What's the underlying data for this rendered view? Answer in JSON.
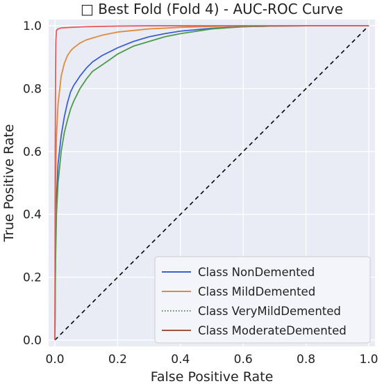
{
  "chart_data": {
    "type": "line",
    "title": "□ Best Fold (Fold 4) - AUC-ROC Curve",
    "xlabel": "False Positive Rate",
    "ylabel": "True Positive Rate",
    "xlim": [
      -0.02,
      1.02
    ],
    "ylim": [
      -0.02,
      1.02
    ],
    "xticks": [
      0.0,
      0.2,
      0.4,
      0.6,
      0.8,
      1.0
    ],
    "yticks": [
      0.0,
      0.2,
      0.4,
      0.6,
      0.8,
      1.0
    ],
    "xtick_labels": [
      "0.0",
      "0.2",
      "0.4",
      "0.6",
      "0.8",
      "1.0"
    ],
    "ytick_labels": [
      "0.0",
      "0.2",
      "0.4",
      "0.6",
      "0.8",
      "1.0"
    ],
    "grid": true,
    "legend_position": "lower-right",
    "background_color": "#e9ecf4",
    "series": [
      {
        "name": "Class NonDemented",
        "color": "#3b5fcf",
        "dash": "solid",
        "points": [
          [
            0,
            0
          ],
          [
            0.002,
            0.3
          ],
          [
            0.005,
            0.45
          ],
          [
            0.01,
            0.56
          ],
          [
            0.02,
            0.65
          ],
          [
            0.03,
            0.71
          ],
          [
            0.04,
            0.755
          ],
          [
            0.05,
            0.79
          ],
          [
            0.06,
            0.81
          ],
          [
            0.08,
            0.84
          ],
          [
            0.1,
            0.865
          ],
          [
            0.12,
            0.885
          ],
          [
            0.15,
            0.905
          ],
          [
            0.2,
            0.93
          ],
          [
            0.25,
            0.95
          ],
          [
            0.3,
            0.965
          ],
          [
            0.35,
            0.975
          ],
          [
            0.4,
            0.983
          ],
          [
            0.5,
            0.992
          ],
          [
            0.6,
            0.997
          ],
          [
            0.7,
            0.999
          ],
          [
            0.8,
            1.0
          ],
          [
            1.0,
            1.0
          ]
        ]
      },
      {
        "name": "Class MildDemented",
        "color": "#e08a3c",
        "dash": "solid",
        "points": [
          [
            0,
            0
          ],
          [
            0.002,
            0.5
          ],
          [
            0.005,
            0.65
          ],
          [
            0.01,
            0.75
          ],
          [
            0.02,
            0.84
          ],
          [
            0.03,
            0.88
          ],
          [
            0.04,
            0.905
          ],
          [
            0.05,
            0.92
          ],
          [
            0.06,
            0.93
          ],
          [
            0.08,
            0.945
          ],
          [
            0.1,
            0.955
          ],
          [
            0.15,
            0.97
          ],
          [
            0.2,
            0.98
          ],
          [
            0.3,
            0.99
          ],
          [
            0.4,
            0.995
          ],
          [
            0.5,
            0.998
          ],
          [
            0.6,
            1.0
          ],
          [
            1.0,
            1.0
          ]
        ]
      },
      {
        "name": "Class VeryMildDemented",
        "color": "#4a9a4a",
        "dash": "solid",
        "legend_dash": "dotted",
        "points": [
          [
            0,
            0
          ],
          [
            0.002,
            0.25
          ],
          [
            0.005,
            0.4
          ],
          [
            0.01,
            0.5
          ],
          [
            0.02,
            0.6
          ],
          [
            0.03,
            0.66
          ],
          [
            0.04,
            0.7
          ],
          [
            0.05,
            0.735
          ],
          [
            0.06,
            0.76
          ],
          [
            0.08,
            0.8
          ],
          [
            0.1,
            0.83
          ],
          [
            0.12,
            0.855
          ],
          [
            0.15,
            0.875
          ],
          [
            0.2,
            0.91
          ],
          [
            0.25,
            0.935
          ],
          [
            0.3,
            0.95
          ],
          [
            0.35,
            0.965
          ],
          [
            0.4,
            0.975
          ],
          [
            0.5,
            0.99
          ],
          [
            0.6,
            0.997
          ],
          [
            0.7,
            0.999
          ],
          [
            0.8,
            1.0
          ],
          [
            1.0,
            1.0
          ]
        ]
      },
      {
        "name": "Class ModerateDemented",
        "color": "#e55b5b",
        "dash": "solid",
        "legend_color": "#a0523a",
        "points": [
          [
            0,
            0
          ],
          [
            0.001,
            0.6
          ],
          [
            0.002,
            0.85
          ],
          [
            0.003,
            0.95
          ],
          [
            0.005,
            0.985
          ],
          [
            0.01,
            0.99
          ],
          [
            0.02,
            0.993
          ],
          [
            0.05,
            0.995
          ],
          [
            0.1,
            0.997
          ],
          [
            0.2,
            0.999
          ],
          [
            0.3,
            1.0
          ],
          [
            1.0,
            1.0
          ]
        ]
      }
    ],
    "reference_line": {
      "points": [
        [
          0,
          0
        ],
        [
          1,
          1
        ]
      ],
      "color": "#000000",
      "dash": "dashed"
    }
  }
}
